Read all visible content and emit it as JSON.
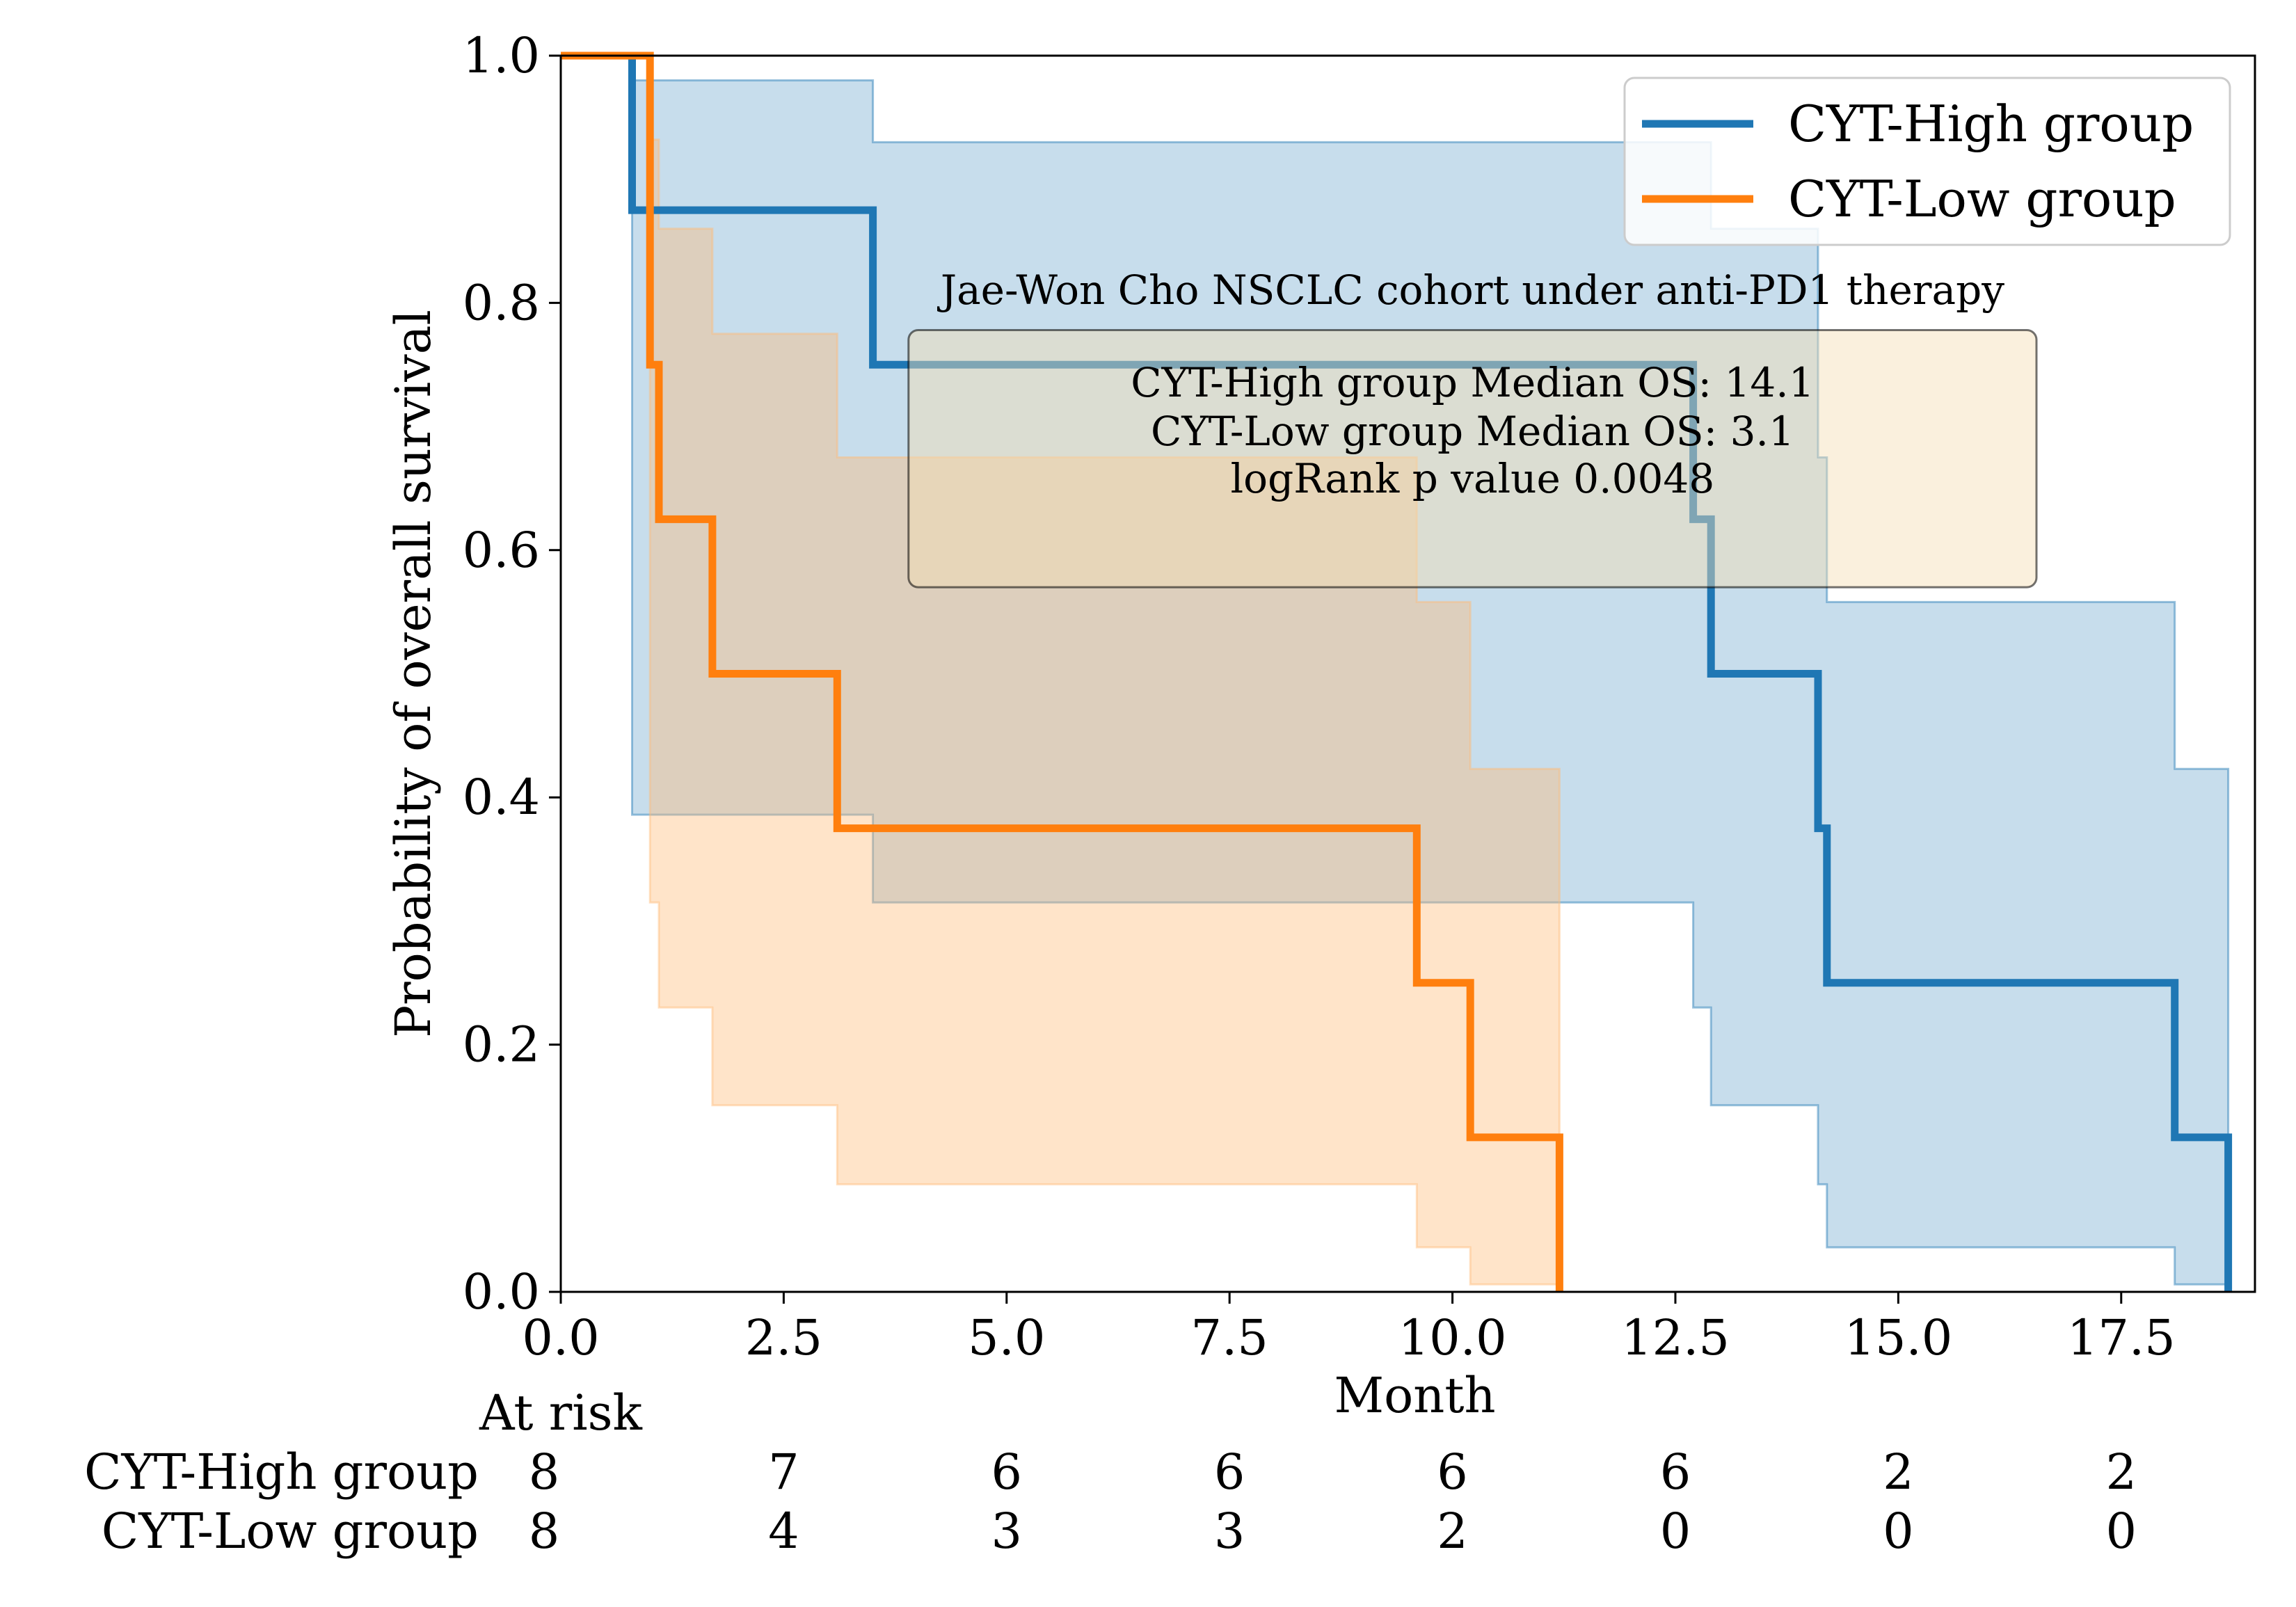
{
  "chart_data": {
    "type": "line",
    "subtype": "kaplan-meier",
    "xlabel": "Month",
    "ylabel": "Probability of overall survival",
    "xlim": [
      0,
      19
    ],
    "ylim": [
      0,
      1
    ],
    "xticks": [
      "0.0",
      "2.5",
      "5.0",
      "7.5",
      "10.0",
      "12.5",
      "15.0",
      "17.5"
    ],
    "yticks": [
      "0.0",
      "0.2",
      "0.4",
      "0.6",
      "0.8",
      "1.0"
    ],
    "grid": false,
    "legend_position": "top-right",
    "series": [
      {
        "name": "CYT-High group",
        "color": "#1f77b4",
        "ci_color": "#1f77b4",
        "step_x": [
          0,
          0.8,
          3.5,
          12.7,
          12.9,
          14.1,
          14.2,
          18.1,
          18.7
        ],
        "step_y": [
          1.0,
          0.875,
          0.75,
          0.625,
          0.5,
          0.375,
          0.25,
          0.125,
          0.0
        ],
        "ci_x": [
          0,
          0.8,
          3.5,
          12.7,
          12.9,
          14.1,
          14.2,
          18.1,
          18.7
        ],
        "ci_upper": [
          1.0,
          0.98,
          0.93,
          0.93,
          0.86,
          0.675,
          0.558,
          0.423,
          0.423
        ],
        "ci_lower": [
          1.0,
          0.386,
          0.315,
          0.23,
          0.151,
          0.087,
          0.036,
          0.006,
          0.006
        ]
      },
      {
        "name": "CYT-Low group",
        "color": "#ff7f0e",
        "ci_color": "#ffbb78",
        "step_x": [
          0,
          1.0,
          1.1,
          1.7,
          3.1,
          9.6,
          10.2,
          11.2
        ],
        "step_y": [
          1.0,
          0.75,
          0.625,
          0.5,
          0.375,
          0.25,
          0.125,
          0.0
        ],
        "ci_x": [
          0,
          1.0,
          1.1,
          1.7,
          3.1,
          9.6,
          10.2,
          11.2
        ],
        "ci_upper": [
          1.0,
          0.932,
          0.86,
          0.775,
          0.675,
          0.558,
          0.423,
          0.423
        ],
        "ci_lower": [
          1.0,
          0.315,
          0.23,
          0.151,
          0.087,
          0.036,
          0.006,
          0.006
        ]
      }
    ],
    "annotation": {
      "title": "Jae-Won Cho NSCLC cohort under anti-PD1 therapy",
      "lines": [
        "CYT-High group Median OS: 14.1",
        "CYT-Low group Median OS: 3.1",
        "logRank p value 0.0048"
      ]
    },
    "at_risk": {
      "title": "At risk",
      "times": [
        0,
        2.5,
        5.0,
        7.5,
        10.0,
        12.5,
        15.0,
        17.5
      ],
      "rows": [
        {
          "label": "CYT-High group",
          "values": [
            "8",
            "7",
            "6",
            "6",
            "6",
            "6",
            "2",
            "2"
          ]
        },
        {
          "label": "CYT-Low group",
          "values": [
            "8",
            "4",
            "3",
            "3",
            "2",
            "0",
            "0",
            "0"
          ]
        }
      ]
    }
  }
}
